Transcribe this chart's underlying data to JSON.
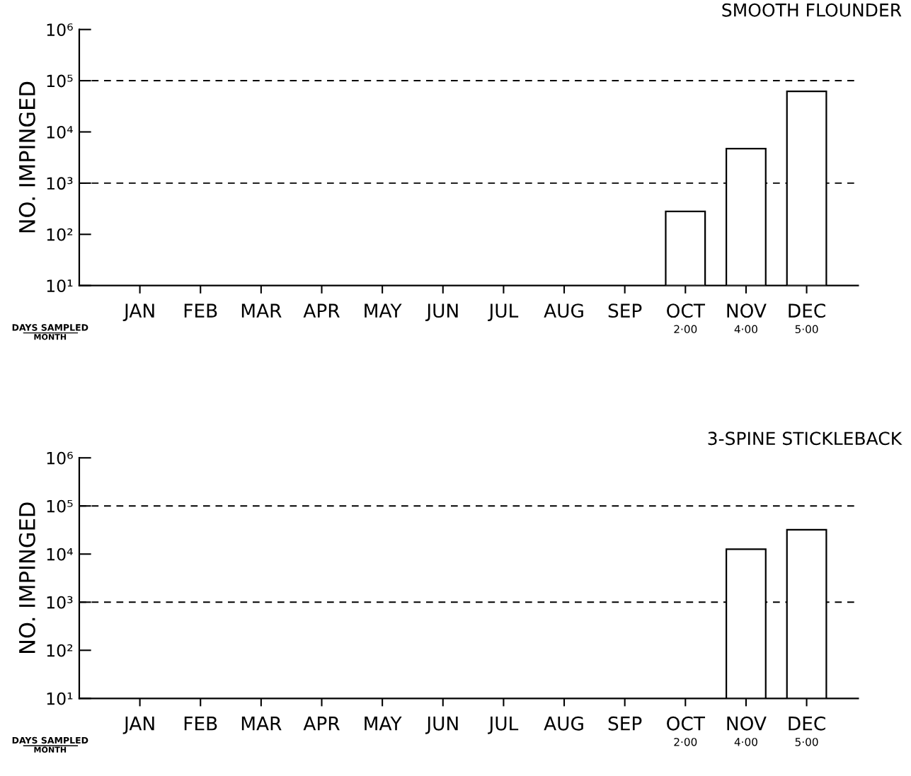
{
  "chart_data": [
    {
      "type": "bar",
      "title": "SMOOTH FLOUNDER",
      "ylabel": "NO. IMPINGED",
      "categories": [
        "JAN",
        "FEB",
        "MAR",
        "APR",
        "MAY",
        "JUN",
        "JUL",
        "AUG",
        "SEP",
        "OCT",
        "NOV",
        "DEC"
      ],
      "values": [
        null,
        null,
        null,
        null,
        null,
        null,
        null,
        null,
        null,
        280,
        4700,
        62000
      ],
      "color": "#ffffff",
      "log": true,
      "ylim": [
        10,
        1000000
      ],
      "yticks": [
        {
          "value": 10,
          "label": "10¹"
        },
        {
          "value": 100,
          "label": "10²"
        },
        {
          "value": 1000,
          "label": "10³"
        },
        {
          "value": 10000,
          "label": "10⁴"
        },
        {
          "value": 100000,
          "label": "10⁵"
        },
        {
          "value": 1000000,
          "label": "10⁶"
        }
      ],
      "ref_lines": [
        {
          "axis": "y",
          "value": 1000,
          "line_style": "dashed"
        },
        {
          "axis": "y",
          "value": 100000,
          "line_style": "dashed"
        }
      ],
      "annotations": [
        "DAYS SAMPLED",
        "MONTH",
        "2·00",
        "4·00",
        "5·00"
      ]
    },
    {
      "type": "bar",
      "title": "3-SPINE STICKLEBACK",
      "ylabel": "NO. IMPINGED",
      "categories": [
        "JAN",
        "FEB",
        "MAR",
        "APR",
        "MAY",
        "JUN",
        "JUL",
        "AUG",
        "SEP",
        "OCT",
        "NOV",
        "DEC"
      ],
      "values": [
        null,
        null,
        null,
        null,
        null,
        null,
        null,
        null,
        null,
        null,
        12600,
        32000
      ],
      "color": "#ffffff",
      "log": true,
      "ylim": [
        10,
        1000000
      ],
      "yticks": [
        {
          "value": 10,
          "label": "10¹"
        },
        {
          "value": 100,
          "label": "10²"
        },
        {
          "value": 1000,
          "label": "10³"
        },
        {
          "value": 10000,
          "label": "10⁴"
        },
        {
          "value": 100000,
          "label": "10⁵"
        },
        {
          "value": 1000000,
          "label": "10⁶"
        }
      ],
      "ref_lines": [
        {
          "axis": "y",
          "value": 1000,
          "line_style": "dashed"
        },
        {
          "axis": "y",
          "value": 100000,
          "line_style": "dashed"
        }
      ],
      "annotations": [
        "DAYS SAMPLED",
        "MONTH",
        "2·00",
        "4·00",
        "5·00"
      ]
    }
  ]
}
